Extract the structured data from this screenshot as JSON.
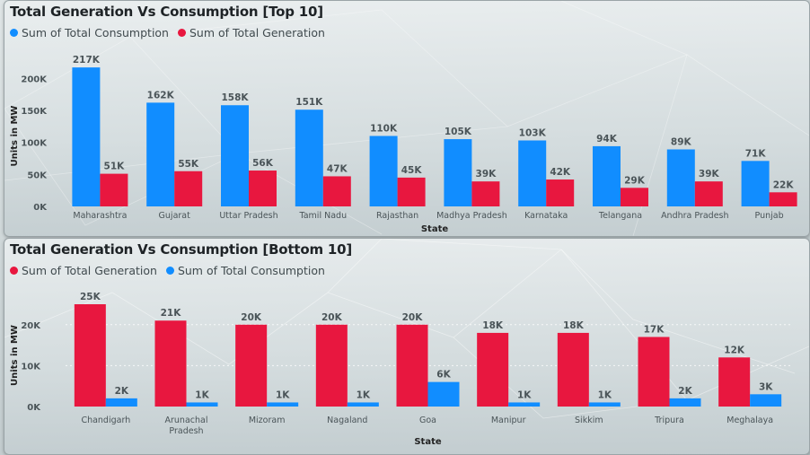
{
  "colors": {
    "consumption": "#118dff",
    "generation": "#e8173f"
  },
  "chart_data": [
    {
      "type": "bar",
      "title": "Total Generation Vs Consumption [Top 10]",
      "xlabel": "State",
      "ylabel": "Units in MW",
      "ylim": [
        0,
        220000
      ],
      "yticks": [
        0,
        50000,
        100000,
        150000,
        200000
      ],
      "ytick_labels": [
        "0K",
        "50K",
        "100K",
        "150K",
        "200K"
      ],
      "grid": false,
      "legend": "top-left",
      "categories": [
        "Maharashtra",
        "Gujarat",
        "Uttar Pradesh",
        "Tamil Nadu",
        "Rajasthan",
        "Madhya Pradesh",
        "Karnataka",
        "Telangana",
        "Andhra Pradesh",
        "Punjab"
      ],
      "series": [
        {
          "name": "Sum of Total Consumption",
          "color": "#118dff",
          "values": [
            217000,
            162000,
            158000,
            151000,
            110000,
            105000,
            103000,
            94000,
            89000,
            71000
          ],
          "labels": [
            "217K",
            "162K",
            "158K",
            "151K",
            "110K",
            "105K",
            "103K",
            "94K",
            "89K",
            "71K"
          ]
        },
        {
          "name": "Sum of Total Generation",
          "color": "#e8173f",
          "values": [
            51000,
            55000,
            56000,
            47000,
            45000,
            39000,
            42000,
            29000,
            39000,
            22000
          ],
          "labels": [
            "51K",
            "55K",
            "56K",
            "47K",
            "45K",
            "39K",
            "42K",
            "29K",
            "39K",
            "22K"
          ]
        }
      ]
    },
    {
      "type": "bar",
      "title": "Total Generation Vs Consumption [Bottom 10]",
      "xlabel": "State",
      "ylabel": "Units in MW",
      "ylim": [
        0,
        25000
      ],
      "yticks": [
        0,
        10000,
        20000
      ],
      "ytick_labels": [
        "0K",
        "10K",
        "20K"
      ],
      "grid": true,
      "legend": "top-left",
      "categories": [
        "Chandigarh",
        "Arunachal Pradesh",
        "Mizoram",
        "Nagaland",
        "Goa",
        "Manipur",
        "Sikkim",
        "Tripura",
        "Meghalaya"
      ],
      "series": [
        {
          "name": "Sum of Total Generation",
          "color": "#e8173f",
          "values": [
            25000,
            21000,
            20000,
            20000,
            20000,
            18000,
            18000,
            17000,
            12000
          ],
          "labels": [
            "25K",
            "21K",
            "20K",
            "20K",
            "20K",
            "18K",
            "18K",
            "17K",
            "12K"
          ]
        },
        {
          "name": "Sum of Total Consumption",
          "color": "#118dff",
          "values": [
            2000,
            1000,
            1000,
            1000,
            6000,
            1000,
            1000,
            2000,
            3000
          ],
          "labels": [
            "2K",
            "1K",
            "1K",
            "1K",
            "6K",
            "1K",
            "1K",
            "2K",
            "3K"
          ]
        }
      ]
    }
  ]
}
